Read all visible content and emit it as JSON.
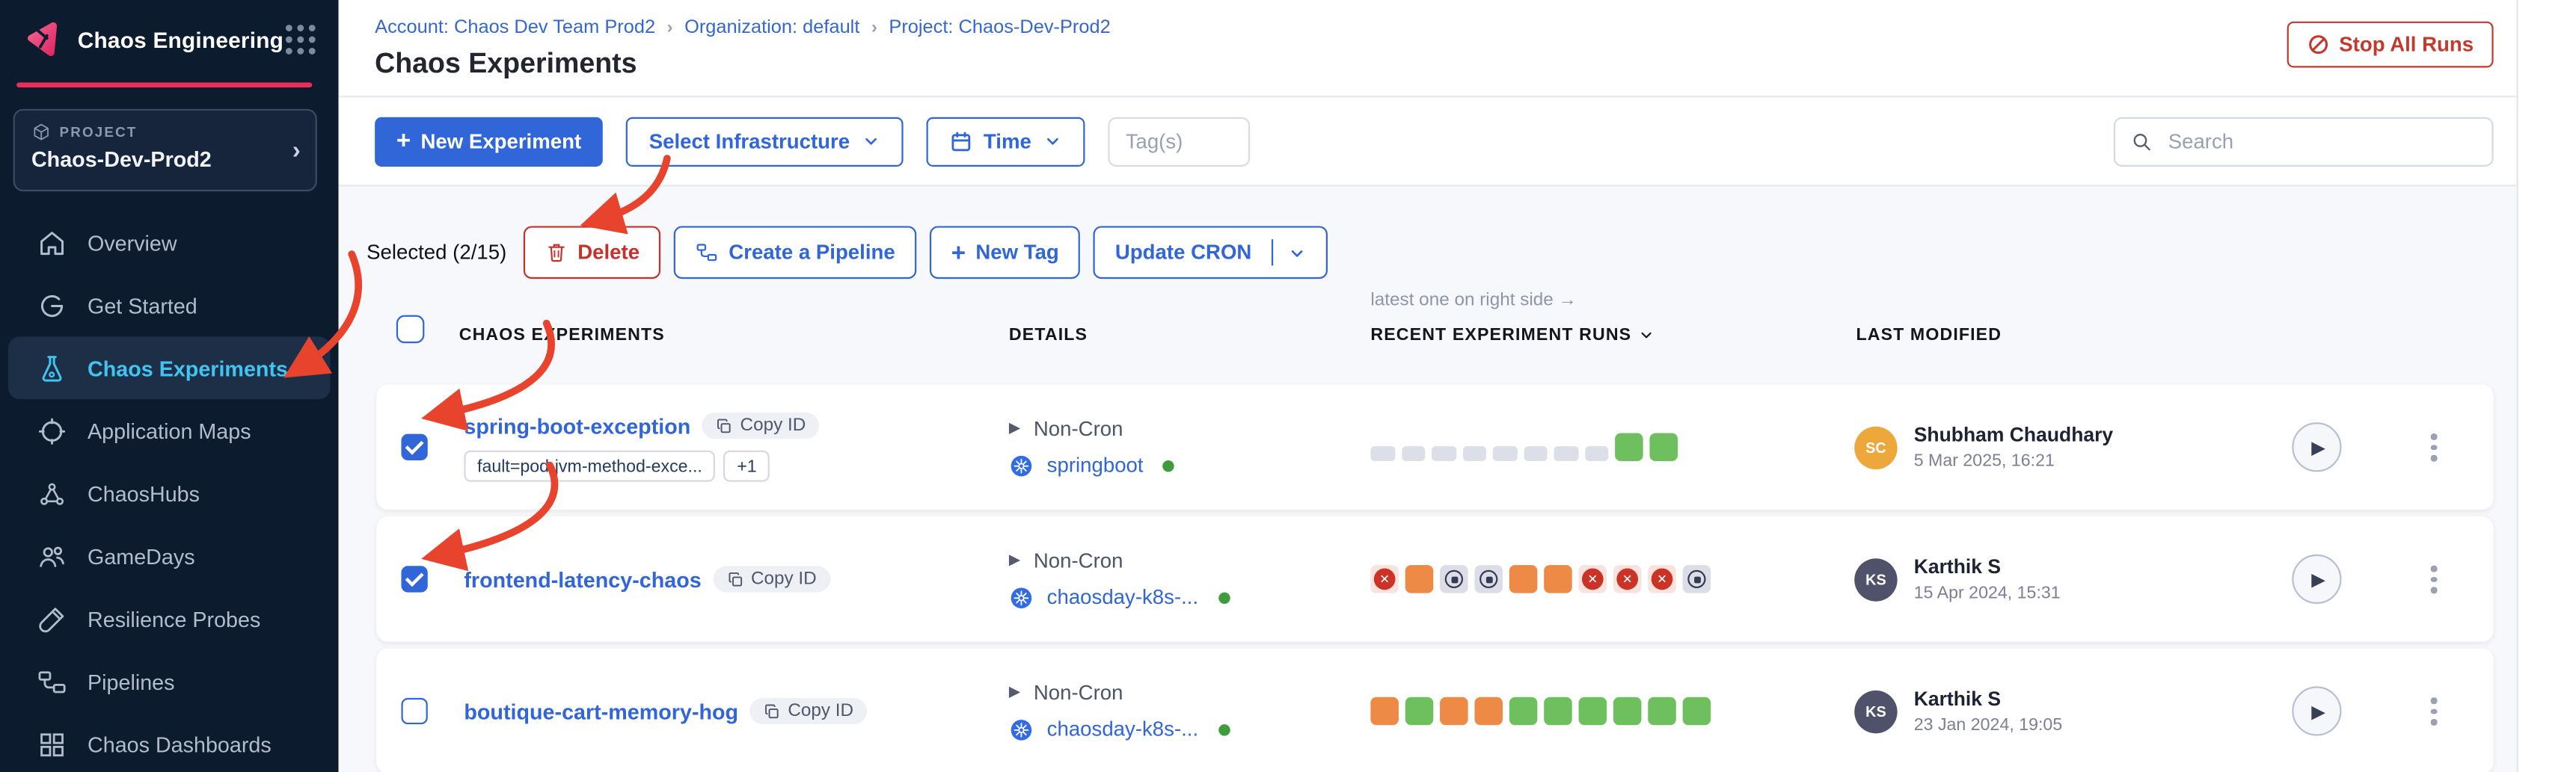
{
  "app": {
    "title": "Chaos Engineering"
  },
  "project_card": {
    "label": "PROJECT",
    "name": "Chaos-Dev-Prod2"
  },
  "nav": {
    "items": [
      {
        "id": "overview",
        "label": "Overview",
        "icon": "home-icon",
        "active": false
      },
      {
        "id": "get-started",
        "label": "Get Started",
        "icon": "get-started-icon",
        "active": false
      },
      {
        "id": "chaos-experiments",
        "label": "Chaos Experiments",
        "icon": "flask-icon",
        "active": true
      },
      {
        "id": "application-maps",
        "label": "Application Maps",
        "icon": "compass-icon",
        "active": false
      },
      {
        "id": "chaoshubs",
        "label": "ChaosHubs",
        "icon": "hub-icon",
        "active": false
      },
      {
        "id": "gamedays",
        "label": "GameDays",
        "icon": "people-icon",
        "active": false
      },
      {
        "id": "resilience-probes",
        "label": "Resilience Probes",
        "icon": "probe-icon",
        "active": false
      },
      {
        "id": "pipelines",
        "label": "Pipelines",
        "icon": "pipeline-icon",
        "active": false
      },
      {
        "id": "chaos-dashboards",
        "label": "Chaos Dashboards",
        "icon": "dashboard-icon",
        "active": false
      }
    ]
  },
  "breadcrumb": {
    "items": [
      "Account: Chaos Dev Team Prod2",
      "Organization: default",
      "Project: Chaos-Dev-Prod2"
    ],
    "separator": "›"
  },
  "page": {
    "title": "Chaos Experiments"
  },
  "actions": {
    "stop_all_runs": "Stop All Runs",
    "new_experiment": "New Experiment",
    "select_infrastructure": "Select Infrastructure",
    "time": "Time",
    "tags_placeholder": "Tag(s)",
    "search_placeholder": "Search"
  },
  "selection_bar": {
    "selected_label": "Selected (2/15)",
    "delete": "Delete",
    "create_pipeline": "Create a Pipeline",
    "new_tag": "New Tag",
    "update_cron": "Update CRON"
  },
  "table": {
    "runs_note": "latest one on right side →",
    "columns": {
      "experiments": "CHAOS EXPERIMENTS",
      "details": "DETAILS",
      "runs": "RECENT EXPERIMENT RUNS",
      "modified": "LAST MODIFIED"
    }
  },
  "rows": [
    {
      "name": "spring-boot-exception",
      "checked": true,
      "copy_id": "Copy ID",
      "tags": [
        "fault=pod-jvm-method-exce...",
        "+1"
      ],
      "schedule": "Non-Cron",
      "infra": "springboot",
      "runs": [
        "na",
        "na",
        "na",
        "na",
        "na",
        "na",
        "na",
        "na",
        "passed",
        "passed"
      ],
      "modified": {
        "initials": "SC",
        "name": "Shubham Chaudhary",
        "date": "5 Mar 2025, 16:21",
        "avatar_color": "#eda73b"
      }
    },
    {
      "name": "frontend-latency-chaos",
      "checked": true,
      "copy_id": "Copy ID",
      "tags": [],
      "schedule": "Non-Cron",
      "infra": "chaosday-k8s-...",
      "runs": [
        "failed",
        "degraded",
        "stopped",
        "stopped",
        "degraded",
        "degraded",
        "failed",
        "failed",
        "failed",
        "stopped"
      ],
      "modified": {
        "initials": "KS",
        "name": "Karthik S",
        "date": "15 Apr 2024, 15:31",
        "avatar_color": "#50526b"
      }
    },
    {
      "name": "boutique-cart-memory-hog",
      "checked": false,
      "copy_id": "Copy ID",
      "tags": [],
      "schedule": "Non-Cron",
      "infra": "chaosday-k8s-...",
      "runs": [
        "degraded",
        "passed",
        "degraded",
        "degraded",
        "passed",
        "passed",
        "passed",
        "passed",
        "passed",
        "passed"
      ],
      "modified": {
        "initials": "KS",
        "name": "Karthik S",
        "date": "23 Jan 2024, 19:05",
        "avatar_color": "#50526b"
      }
    }
  ],
  "colors": {
    "accent_blue": "#3066d8",
    "danger_red": "#c9302c",
    "brand_pink": "#ee2c5c",
    "nav_active_blue": "#41c4f1",
    "run_passed_green": "#6ec05e",
    "run_degraded_orange": "#ed8a45",
    "run_failed_red": "#ca3326",
    "run_na_gray": "#dcdee8",
    "kubernetes_blue": "#326ce5",
    "annotation_red": "#e8432c",
    "sidebar_bg": "#0c1b2e"
  }
}
